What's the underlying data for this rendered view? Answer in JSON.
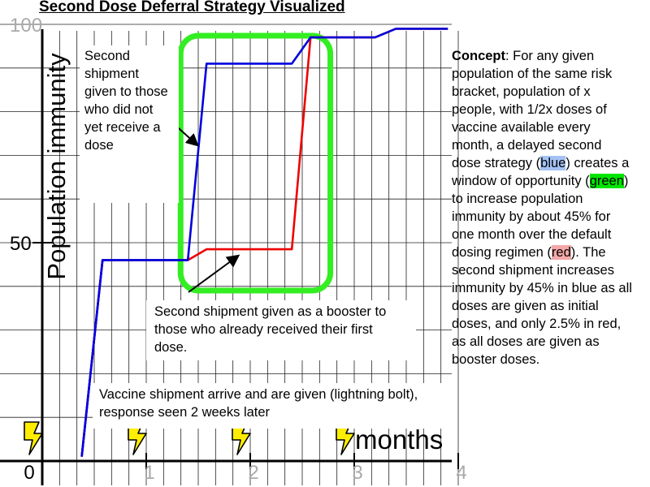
{
  "title": "Second Dose Deferral Strategy Visualized",
  "chart_data": {
    "type": "line",
    "xlabel": "months",
    "ylabel": "Population immunity",
    "xlim": [
      0,
      4
    ],
    "ylim": [
      0,
      100
    ],
    "x_tick_labels": [
      "0",
      "1",
      "2",
      "3",
      "4"
    ],
    "y_tick_labels": [
      "50",
      "100"
    ],
    "series": [
      {
        "color": "#0000dd",
        "x": [
          0.38,
          0.58,
          1.4,
          1.58,
          2.4,
          2.58,
          3.2,
          3.4,
          3.9
        ],
        "y": [
          1,
          46,
          46,
          91,
          91,
          97,
          97,
          99,
          99
        ]
      },
      {
        "color": "#ee0000",
        "x": [
          0.38,
          0.58,
          1.4,
          1.58,
          2.4,
          2.58,
          3.2,
          3.4,
          3.9
        ],
        "y": [
          1,
          46,
          46,
          48.5,
          48.5,
          97,
          97,
          99,
          99
        ]
      }
    ],
    "lightning_months": [
      0,
      1,
      2,
      3
    ],
    "window_color": "#33ee22"
  },
  "annotations": {
    "top": "Second shipment given to those who did not yet receive a dose",
    "middle": "Second shipment given as a booster to those who already received their first dose.",
    "bottom": "Vaccine shipment arrive and are given (lightning bolt), response seen 2 weeks later"
  },
  "concept": {
    "label": "Concept",
    "p1": ": For any given population of the same risk bracket, population of x people, with 1/2x doses of vaccine available every month, a delayed second dose strategy (",
    "blue": "blue",
    "p2": ") creates a window of opportunity (",
    "green": "green",
    "p3": ") to increase population immunity by about 45% for one month over the default dosing regimen (",
    "red": "red",
    "p4": ").  The second shipment increases immunity by 45% in blue as all doses are given as initial doses, and only 2.5% in red, as all doses are given as booster doses."
  }
}
